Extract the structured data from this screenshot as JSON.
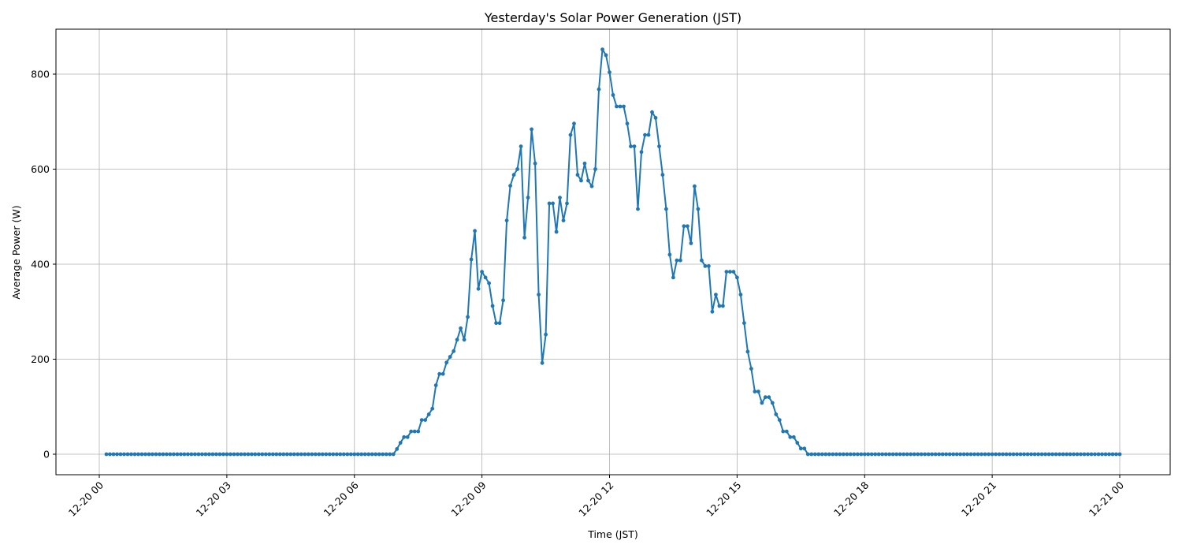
{
  "chart_data": {
    "type": "line",
    "title": "Yesterday's Solar Power Generation (JST)",
    "xlabel": "Time (JST)",
    "ylabel": "Average Power (W)",
    "ylim": [
      -42,
      892
    ],
    "yticks": [
      0,
      200,
      400,
      600,
      800
    ],
    "xtick_labels": [
      "12-20 00",
      "12-20 03",
      "12-20 06",
      "12-20 09",
      "12-20 12",
      "12-20 15",
      "12-20 18",
      "12-20 21",
      "12-21 00"
    ],
    "xtick_hours": [
      0,
      3,
      6,
      9,
      12,
      15,
      18,
      21,
      24
    ],
    "xlim_hours": [
      -0.72,
      25.48
    ],
    "grid": true,
    "legend": null,
    "marker": "o",
    "color": "#1f77b4",
    "interval_minutes": 5,
    "start_time": "12-20 00:10",
    "end_time": "12-21 00:00",
    "zero_before": 81,
    "zero_after": 88,
    "active_start_time": "12-20 06:55",
    "active_values": [
      0,
      11,
      24,
      36,
      36,
      48,
      48,
      48,
      72,
      72,
      84,
      96,
      145,
      169,
      169,
      193,
      205,
      217,
      241,
      265,
      241,
      289,
      410,
      470,
      348,
      384,
      372,
      360,
      312,
      276,
      276,
      324,
      492,
      565,
      588,
      600,
      648,
      456,
      540,
      684,
      612,
      336,
      192,
      252,
      528,
      528,
      468,
      540,
      492,
      528,
      672,
      696,
      588,
      576,
      612,
      576,
      564,
      600,
      768,
      852,
      840,
      804,
      756,
      732,
      732,
      732,
      696,
      648,
      648,
      516,
      636,
      672,
      672,
      720,
      708,
      648,
      588,
      516,
      420,
      372,
      408,
      408,
      480,
      480,
      444,
      564,
      516,
      408,
      396,
      396,
      300,
      336,
      312,
      312,
      384,
      384,
      384,
      372,
      336,
      276,
      216,
      180,
      132,
      132,
      108,
      120,
      120,
      108,
      84,
      72,
      48,
      48,
      36,
      36,
      24,
      12,
      12,
      0
    ]
  }
}
